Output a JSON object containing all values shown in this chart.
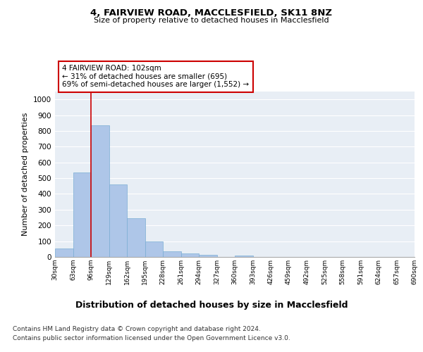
{
  "title1": "4, FAIRVIEW ROAD, MACCLESFIELD, SK11 8NZ",
  "title2": "Size of property relative to detached houses in Macclesfield",
  "xlabel": "Distribution of detached houses by size in Macclesfield",
  "ylabel": "Number of detached properties",
  "bar_values": [
    55,
    535,
    835,
    460,
    245,
    98,
    35,
    22,
    12,
    0,
    8,
    0,
    0,
    0,
    0,
    0,
    0,
    0,
    0,
    0
  ],
  "bar_labels": [
    "30sqm",
    "63sqm",
    "96sqm",
    "129sqm",
    "162sqm",
    "195sqm",
    "228sqm",
    "261sqm",
    "294sqm",
    "327sqm",
    "360sqm",
    "393sqm",
    "426sqm",
    "459sqm",
    "492sqm",
    "525sqm",
    "558sqm",
    "591sqm",
    "624sqm",
    "657sqm",
    "690sqm"
  ],
  "bar_color": "#aec6e8",
  "bar_edgecolor": "#7aadd4",
  "vline_x": 2.0,
  "vline_color": "#cc0000",
  "annotation_text": "4 FAIRVIEW ROAD: 102sqm\n← 31% of detached houses are smaller (695)\n69% of semi-detached houses are larger (1,552) →",
  "annotation_box_color": "#ffffff",
  "annotation_box_edgecolor": "#cc0000",
  "ylim": [
    0,
    1050
  ],
  "yticks": [
    0,
    100,
    200,
    300,
    400,
    500,
    600,
    700,
    800,
    900,
    1000
  ],
  "bg_color": "#e8eef5",
  "footer1": "Contains HM Land Registry data © Crown copyright and database right 2024.",
  "footer2": "Contains public sector information licensed under the Open Government Licence v3.0."
}
